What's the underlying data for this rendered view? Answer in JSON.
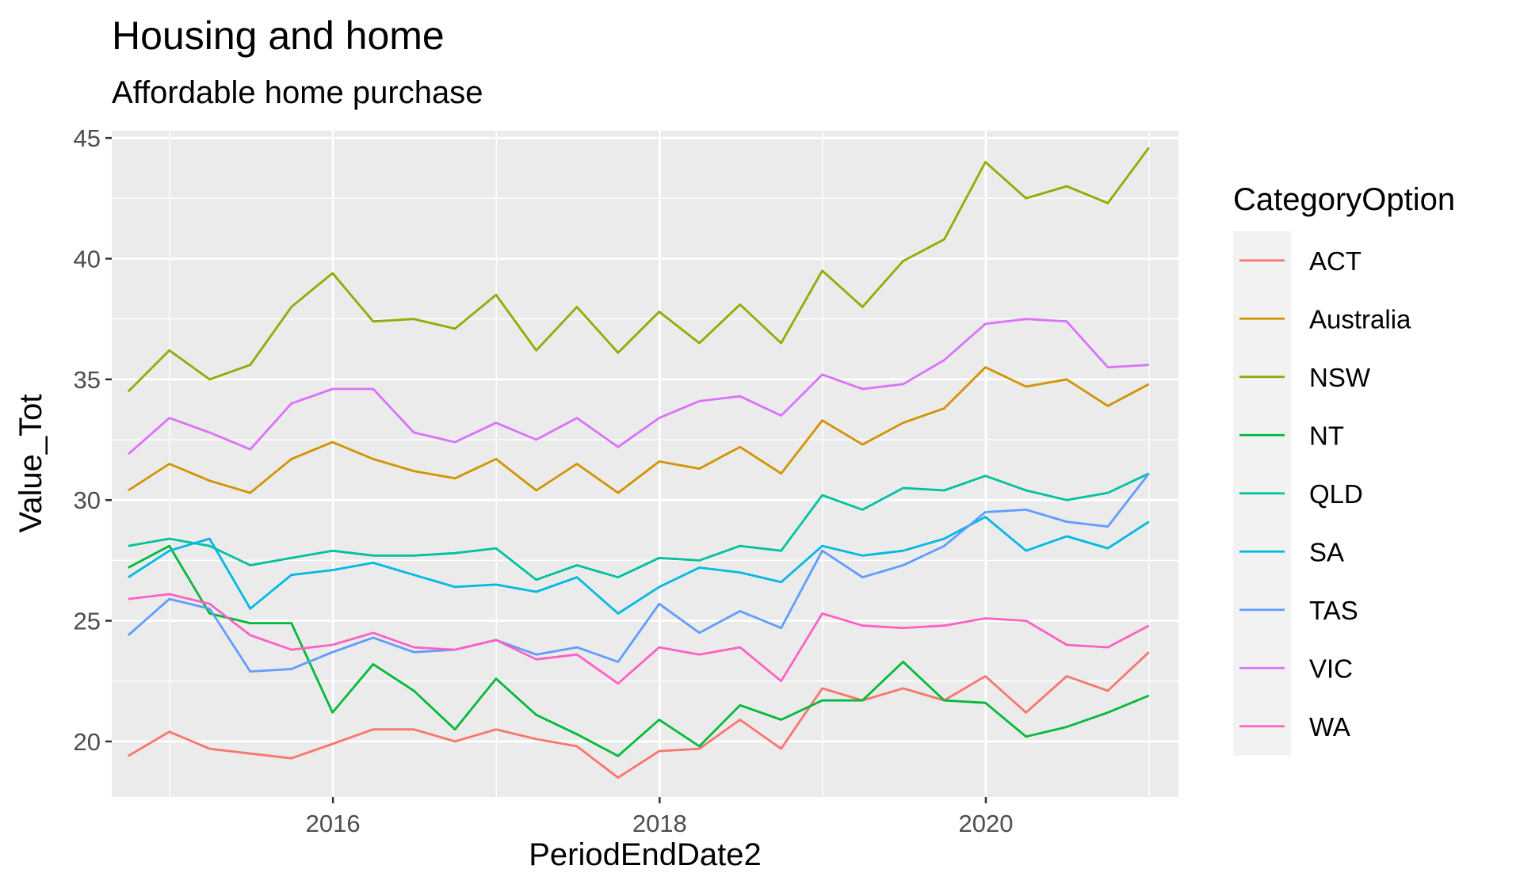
{
  "chart_data": {
    "type": "line",
    "title": "Housing and home",
    "subtitle": "Affordable home purchase",
    "xlabel": "PeriodEndDate2",
    "ylabel": "Value_Tot",
    "xlim": [
      "2014-08-24",
      "2021-03-07"
    ],
    "ylim": [
      17.7,
      45.3
    ],
    "x_ticks": [
      "2016-01-01",
      "2018-01-01",
      "2020-01-01"
    ],
    "x_tick_labels": [
      "2016",
      "2018",
      "2020"
    ],
    "y_ticks": [
      20,
      25,
      30,
      35,
      40,
      45
    ],
    "y_tick_labels": [
      "20",
      "25",
      "30",
      "35",
      "40",
      "45"
    ],
    "grid": true,
    "legend_title": "CategoryOption",
    "legend_position": "right",
    "x": [
      "2014-09-30",
      "2014-12-31",
      "2015-03-31",
      "2015-06-30",
      "2015-09-30",
      "2015-12-31",
      "2016-03-31",
      "2016-06-30",
      "2016-09-30",
      "2016-12-31",
      "2017-03-31",
      "2017-06-30",
      "2017-09-30",
      "2017-12-31",
      "2018-03-31",
      "2018-06-30",
      "2018-09-30",
      "2018-12-31",
      "2019-03-31",
      "2019-06-30",
      "2019-09-30",
      "2019-12-31",
      "2020-03-31",
      "2020-06-30",
      "2020-09-30",
      "2020-12-31"
    ],
    "series": [
      {
        "name": "ACT",
        "color": "#F8766D",
        "values": [
          19.4,
          20.4,
          19.7,
          19.5,
          19.3,
          19.9,
          20.5,
          20.5,
          20.0,
          20.5,
          20.1,
          19.8,
          18.5,
          19.6,
          19.7,
          20.9,
          19.7,
          22.2,
          21.7,
          22.2,
          21.7,
          22.7,
          21.2,
          22.7,
          22.1,
          23.7
        ]
      },
      {
        "name": "Australia",
        "color": "#D39200",
        "values": [
          30.4,
          31.5,
          30.8,
          30.3,
          31.7,
          32.4,
          31.7,
          31.2,
          30.9,
          31.7,
          30.4,
          31.5,
          30.3,
          31.6,
          31.3,
          32.2,
          31.1,
          33.3,
          32.3,
          33.2,
          33.8,
          35.5,
          34.7,
          35.0,
          33.9,
          34.8
        ]
      },
      {
        "name": "NSW",
        "color": "#93AA00",
        "values": [
          34.5,
          36.2,
          35.0,
          35.6,
          38.0,
          39.4,
          37.4,
          37.5,
          37.1,
          38.5,
          36.2,
          38.0,
          36.1,
          37.8,
          36.5,
          38.1,
          36.5,
          39.5,
          38.0,
          39.9,
          40.8,
          44.0,
          42.5,
          43.0,
          42.3,
          44.6
        ]
      },
      {
        "name": "NT",
        "color": "#00BA38",
        "values": [
          27.2,
          28.1,
          25.3,
          24.9,
          24.9,
          21.2,
          23.2,
          22.1,
          20.5,
          22.6,
          21.1,
          20.3,
          19.4,
          20.9,
          19.8,
          21.5,
          20.9,
          21.7,
          21.7,
          23.3,
          21.7,
          21.6,
          20.2,
          20.6,
          21.2,
          21.9
        ]
      },
      {
        "name": "QLD",
        "color": "#00C19F",
        "values": [
          28.1,
          28.4,
          28.1,
          27.3,
          27.6,
          27.9,
          27.7,
          27.7,
          27.8,
          28.0,
          26.7,
          27.3,
          26.8,
          27.6,
          27.5,
          28.1,
          27.9,
          30.2,
          29.6,
          30.5,
          30.4,
          31.0,
          30.4,
          30.0,
          30.3,
          31.1
        ]
      },
      {
        "name": "SA",
        "color": "#00B9E3",
        "values": [
          26.8,
          27.9,
          28.4,
          25.5,
          26.9,
          27.1,
          27.4,
          26.9,
          26.4,
          26.5,
          26.2,
          26.8,
          25.3,
          26.4,
          27.2,
          27.0,
          26.6,
          28.1,
          27.7,
          27.9,
          28.4,
          29.3,
          27.9,
          28.5,
          28.0,
          29.1
        ]
      },
      {
        "name": "TAS",
        "color": "#619CFF",
        "values": [
          24.4,
          25.9,
          25.5,
          22.9,
          23.0,
          23.7,
          24.3,
          23.7,
          23.8,
          24.2,
          23.6,
          23.9,
          23.3,
          25.7,
          24.5,
          25.4,
          24.7,
          27.9,
          26.8,
          27.3,
          28.1,
          29.5,
          29.6,
          29.1,
          28.9,
          31.1
        ]
      },
      {
        "name": "VIC",
        "color": "#DB72FB",
        "values": [
          31.9,
          33.4,
          32.8,
          32.1,
          34.0,
          34.6,
          34.6,
          32.8,
          32.4,
          33.2,
          32.5,
          33.4,
          32.2,
          33.4,
          34.1,
          34.3,
          33.5,
          35.2,
          34.6,
          34.8,
          35.8,
          37.3,
          37.5,
          37.4,
          35.5,
          35.6
        ]
      },
      {
        "name": "WA",
        "color": "#FF61C3",
        "values": [
          25.9,
          26.1,
          25.7,
          24.4,
          23.8,
          24.0,
          24.5,
          23.9,
          23.8,
          24.2,
          23.4,
          23.6,
          22.4,
          23.9,
          23.6,
          23.9,
          22.5,
          25.3,
          24.8,
          24.7,
          24.8,
          25.1,
          25.0,
          24.0,
          23.9,
          24.8
        ]
      }
    ]
  }
}
